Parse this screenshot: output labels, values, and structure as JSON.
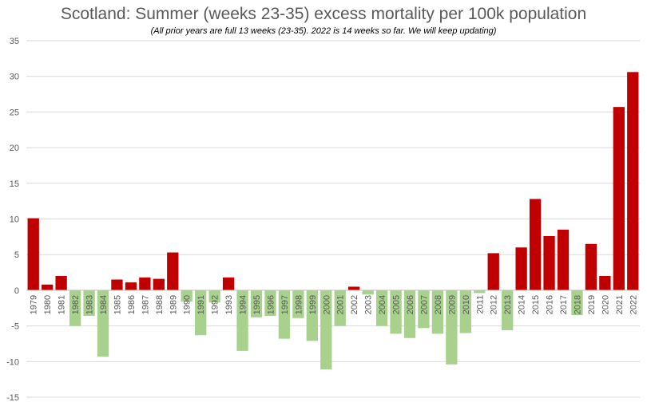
{
  "chart_data": {
    "type": "bar",
    "title": "Scotland: Summer (weeks 23-35) excess mortality per 100k population",
    "subtitle": "(All prior years are full 13 weeks (23-35). 2022 is 14 weeks so far. We will keep updating)",
    "xlabel": "",
    "ylabel": "",
    "ylim": [
      -15,
      35
    ],
    "yticks": [
      -15,
      -10,
      -5,
      0,
      5,
      10,
      15,
      20,
      25,
      30,
      35
    ],
    "grid": true,
    "legend": "none",
    "colors": {
      "positive": "#c00000",
      "negative": "#a9d18e",
      "grid": "#d9d9d9",
      "axis": "#bfbfbf"
    },
    "categories": [
      "1979",
      "1980",
      "1981",
      "1982",
      "1983",
      "1984",
      "1985",
      "1986",
      "1987",
      "1988",
      "1989",
      "1990",
      "1991",
      "1992",
      "1993",
      "1994",
      "1995",
      "1996",
      "1997",
      "1998",
      "1999",
      "2000",
      "2001",
      "2002",
      "2003",
      "2004",
      "2005",
      "2006",
      "2007",
      "2008",
      "2009",
      "2010",
      "2011",
      "2012",
      "2013",
      "2014",
      "2015",
      "2016",
      "2017",
      "2018",
      "2019",
      "2020",
      "2021",
      "2022"
    ],
    "values": [
      10.1,
      0.8,
      2.0,
      -5.0,
      -3.6,
      -9.3,
      1.5,
      1.1,
      1.8,
      1.6,
      5.3,
      -1.6,
      -6.3,
      -1.7,
      1.8,
      -8.5,
      -3.8,
      -3.6,
      -6.8,
      -3.9,
      -7.1,
      -11.1,
      -5.0,
      0.5,
      -0.6,
      -5.0,
      -6.1,
      -6.7,
      -5.3,
      -6.1,
      -10.4,
      -6.0,
      -0.4,
      5.2,
      -5.6,
      6.0,
      12.8,
      7.6,
      8.5,
      -3.5,
      6.5,
      2.0,
      25.7,
      30.6
    ]
  }
}
